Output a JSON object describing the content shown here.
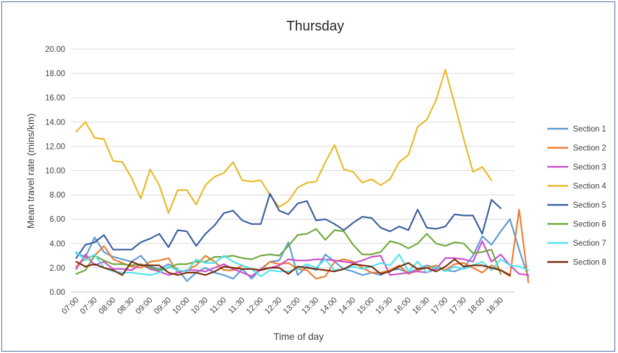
{
  "chart_data": {
    "type": "line",
    "title": "Thursday",
    "xlabel": "Time of day",
    "ylabel": "Mean travel rate (mins/km)",
    "ylim": [
      0,
      20
    ],
    "yticks": [
      "0.00",
      "2.00",
      "4.00",
      "6.00",
      "8.00",
      "10.00",
      "12.00",
      "14.00",
      "16.00",
      "18.00",
      "20.00"
    ],
    "x_tick_labels": [
      "07:00",
      "07:30",
      "08:00",
      "08:30",
      "09:00",
      "09:30",
      "10:00",
      "10:30",
      "11:00",
      "11:30",
      "12:00",
      "12:30",
      "13:00",
      "13:30",
      "14:00",
      "14:30",
      "15:00",
      "15:30",
      "16:00",
      "16:30",
      "17:00",
      "17:30",
      "18:00",
      "18:30"
    ],
    "legend_position": "right",
    "grid": "horizontal",
    "series": [
      {
        "name": "Section 1",
        "color": "#5b9bd5",
        "values": [
          3.2,
          2.9,
          4.5,
          3.3,
          2.9,
          2.7,
          2.5,
          3.0,
          2.1,
          1.9,
          2.3,
          1.9,
          0.9,
          1.6,
          2.0,
          1.6,
          1.4,
          1.1,
          1.9,
          1.1,
          1.9,
          2.5,
          2.6,
          4.1,
          1.4,
          2.1,
          1.8,
          3.1,
          2.5,
          1.9,
          1.7,
          1.4,
          1.6,
          1.4,
          1.8,
          1.9,
          1.6,
          1.9,
          2.2,
          2.0,
          1.8,
          1.7,
          2.0,
          3.0,
          4.6,
          3.9,
          5.0,
          6.0,
          3.5,
          1.2
        ]
      },
      {
        "name": "Section 2",
        "color": "#ed7d31",
        "values": [
          2.1,
          2.8,
          3.0,
          3.8,
          2.7,
          2.4,
          2.1,
          2.0,
          2.5,
          2.6,
          2.8,
          1.6,
          1.8,
          2.2,
          3.0,
          2.5,
          1.8,
          1.8,
          2.2,
          1.9,
          1.8,
          2.5,
          2.3,
          2.4,
          1.9,
          1.8,
          1.1,
          1.3,
          2.5,
          2.7,
          2.5,
          2.0,
          1.6,
          1.6,
          1.8,
          2.2,
          1.5,
          1.8,
          2.0,
          2.2,
          1.8,
          2.3,
          2.4,
          2.0,
          1.6,
          2.2,
          1.8,
          1.3,
          6.8,
          0.8
        ]
      },
      {
        "name": "Section 3",
        "color": "#cc4fc7",
        "values": [
          1.9,
          3.1,
          2.2,
          2.5,
          1.9,
          1.9,
          1.8,
          2.3,
          1.9,
          1.7,
          1.4,
          1.6,
          1.8,
          1.8,
          1.7,
          2.0,
          2.3,
          1.9,
          1.6,
          1.3,
          1.9,
          2.0,
          2.2,
          2.7,
          2.6,
          2.6,
          2.7,
          2.7,
          2.6,
          2.5,
          2.4,
          2.6,
          2.9,
          3.0,
          1.4,
          1.5,
          1.6,
          1.7,
          1.6,
          1.9,
          2.8,
          2.8,
          2.7,
          2.5,
          4.2,
          2.5,
          3.1,
          2.2,
          1.5,
          1.4
        ]
      },
      {
        "name": "Section 4",
        "color": "#e8b92a",
        "values": [
          13.2,
          14.0,
          12.7,
          12.6,
          10.8,
          10.7,
          9.4,
          7.7,
          10.1,
          8.8,
          6.5,
          8.4,
          8.4,
          7.2,
          8.8,
          9.5,
          9.8,
          10.7,
          9.2,
          9.1,
          9.2,
          8.0,
          7.0,
          7.5,
          8.6,
          9.0,
          9.1,
          10.7,
          12.1,
          10.1,
          9.9,
          9.0,
          9.3,
          8.8,
          9.3,
          10.7,
          11.3,
          13.6,
          14.2,
          15.8,
          18.3,
          15.5,
          12.6,
          9.9,
          10.3,
          9.2
        ]
      },
      {
        "name": "Section 5",
        "color": "#3a5f9e",
        "values": [
          2.8,
          3.9,
          4.1,
          4.7,
          3.5,
          3.5,
          3.5,
          4.1,
          4.4,
          4.8,
          3.7,
          5.1,
          5.0,
          3.8,
          4.8,
          5.5,
          6.5,
          6.7,
          5.9,
          5.6,
          5.6,
          8.1,
          6.7,
          6.4,
          7.3,
          7.5,
          5.9,
          6.0,
          5.6,
          5.1,
          5.7,
          6.2,
          6.1,
          5.3,
          5.0,
          5.4,
          5.1,
          6.8,
          5.3,
          5.2,
          5.4,
          6.4,
          6.3,
          6.3,
          4.8,
          7.6,
          6.9
        ]
      },
      {
        "name": "Section 6",
        "color": "#70a83d",
        "values": [
          1.5,
          1.8,
          3.0,
          2.6,
          2.3,
          2.3,
          2.2,
          2.3,
          2.0,
          1.8,
          2.0,
          2.3,
          2.3,
          2.5,
          2.5,
          2.9,
          2.9,
          3.0,
          2.8,
          2.7,
          3.0,
          3.1,
          3.0,
          3.8,
          4.7,
          4.8,
          5.2,
          4.3,
          5.1,
          5.0,
          3.9,
          3.1,
          3.1,
          3.3,
          4.2,
          4.0,
          3.6,
          4.0,
          4.8,
          4.0,
          3.8,
          4.1,
          4.0,
          3.2,
          3.3,
          3.5,
          1.5
        ]
      },
      {
        "name": "Section 7",
        "color": "#4fe3f0",
        "values": [
          3.3,
          2.6,
          3.1,
          2.0,
          1.7,
          1.6,
          1.6,
          1.5,
          1.4,
          1.6,
          2.1,
          1.8,
          1.7,
          2.7,
          2.4,
          2.4,
          3.0,
          2.5,
          2.2,
          1.9,
          1.3,
          1.8,
          1.7,
          1.7,
          1.9,
          2.3,
          2.0,
          2.7,
          1.8,
          1.9,
          2.1,
          1.9,
          2.1,
          2.4,
          2.2,
          3.1,
          1.7,
          2.5,
          1.6,
          2.1,
          1.7,
          2.1,
          1.9,
          2.2,
          2.5,
          1.8,
          2.7,
          2.2,
          2.1,
          1.8
        ]
      },
      {
        "name": "Section 8",
        "color": "#7a2c0c",
        "values": [
          2.5,
          2.1,
          2.3,
          2.0,
          1.8,
          1.4,
          2.5,
          2.2,
          2.2,
          2.2,
          1.6,
          1.4,
          1.6,
          1.6,
          1.4,
          1.7,
          2.1,
          2.0,
          1.9,
          1.9,
          1.8,
          2.0,
          2.0,
          1.5,
          2.1,
          2.0,
          1.9,
          1.8,
          1.7,
          1.9,
          2.3,
          2.2,
          2.1,
          1.5,
          1.7,
          2.1,
          2.4,
          1.9,
          2.0,
          1.7,
          2.1,
          2.7,
          2.1,
          2.2,
          2.2,
          2.0,
          1.8,
          1.4
        ]
      }
    ]
  }
}
